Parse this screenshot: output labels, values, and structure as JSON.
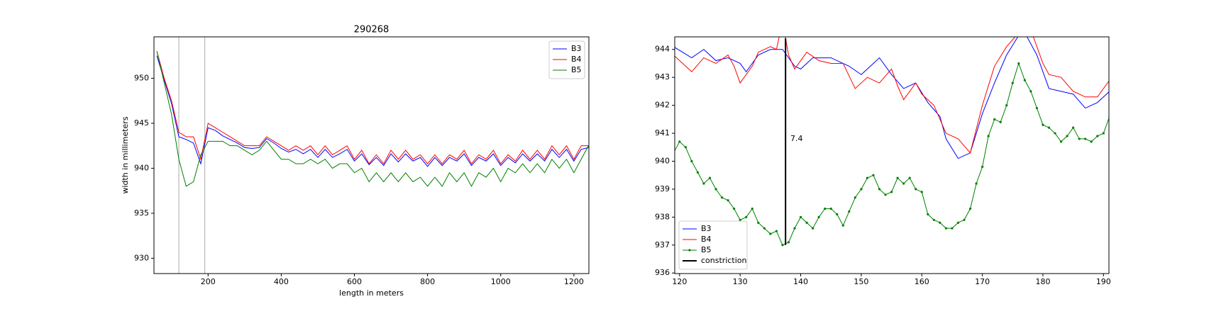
{
  "chart_data": [
    {
      "type": "line",
      "title": "290268",
      "x_label": "length in meters",
      "y_label": "width in millimeters",
      "xlim": [
        52,
        1241
      ],
      "ylim": [
        928.3,
        954.6
      ],
      "xticks": [
        200,
        400,
        600,
        800,
        1000,
        1200
      ],
      "yticks": [
        930,
        935,
        940,
        945,
        950
      ],
      "legend": "upper right",
      "vlines": [
        120,
        191
      ],
      "x": [
        60,
        80,
        100,
        120,
        140,
        160,
        180,
        200,
        220,
        240,
        260,
        280,
        300,
        320,
        340,
        360,
        380,
        400,
        420,
        440,
        460,
        480,
        500,
        520,
        540,
        560,
        580,
        600,
        620,
        640,
        660,
        680,
        700,
        720,
        740,
        760,
        780,
        800,
        820,
        840,
        860,
        880,
        900,
        920,
        940,
        960,
        980,
        1000,
        1020,
        1040,
        1060,
        1080,
        1100,
        1120,
        1140,
        1160,
        1180,
        1200,
        1220,
        1240
      ],
      "series": [
        {
          "name": "B3",
          "color": "#0000ff",
          "values": [
            952.5,
            949.8,
            947.2,
            943.5,
            943.2,
            942.8,
            940.5,
            944.5,
            944.2,
            943.6,
            943.2,
            942.8,
            942.3,
            942.2,
            942.3,
            943.3,
            942.8,
            942.2,
            941.8,
            942.1,
            941.6,
            942.1,
            941.2,
            942.1,
            941.2,
            941.6,
            942.1,
            940.8,
            941.6,
            940.4,
            941.2,
            940.3,
            941.6,
            940.7,
            941.6,
            940.8,
            941.2,
            940.2,
            941.2,
            940.3,
            941.2,
            940.8,
            941.6,
            940.3,
            941.2,
            940.8,
            941.6,
            940.3,
            941.2,
            940.6,
            941.6,
            940.8,
            941.6,
            940.8,
            942.1,
            941.2,
            942.1,
            940.8,
            942.1,
            942.3
          ]
        },
        {
          "name": "B4",
          "color": "#ff0000",
          "values": [
            953,
            950,
            947.5,
            944,
            943.5,
            943.5,
            941,
            945,
            944.5,
            944,
            943.5,
            943,
            942.5,
            942.5,
            942.5,
            943.5,
            943,
            942.5,
            942,
            942.5,
            942,
            942.5,
            941.5,
            942.5,
            941.5,
            942,
            942.5,
            941,
            942,
            940.5,
            941.5,
            940.5,
            942,
            941,
            942,
            941,
            941.5,
            940.5,
            941.5,
            940.5,
            941.5,
            941,
            942,
            940.5,
            941.5,
            941,
            942,
            940.5,
            941.5,
            940.8,
            942,
            941,
            942,
            941,
            942.5,
            941.5,
            942.5,
            941,
            942.5,
            942.5
          ]
        },
        {
          "name": "B5",
          "color": "#008000",
          "values": [
            953,
            949.5,
            946,
            941,
            938,
            938.5,
            941.5,
            943,
            943,
            943,
            942.5,
            942.5,
            942,
            941.5,
            942,
            943,
            942,
            941,
            941,
            940.5,
            940.5,
            941,
            940.5,
            941,
            940,
            940.5,
            940.5,
            939.5,
            940,
            938.5,
            939.5,
            938.5,
            939.5,
            938.5,
            939.5,
            938.5,
            939,
            938,
            939,
            938,
            939.5,
            938.5,
            939.5,
            938,
            939.5,
            939,
            940,
            938.5,
            940,
            939.5,
            940.5,
            939.5,
            940.5,
            939.5,
            941,
            940,
            941,
            939.5,
            941,
            942.5
          ]
        }
      ]
    },
    {
      "type": "line",
      "xlim": [
        119.2,
        190.9
      ],
      "ylim": [
        935.98,
        944.45
      ],
      "xticks": [
        120,
        130,
        140,
        150,
        160,
        170,
        180,
        190
      ],
      "yticks": [
        936,
        937,
        938,
        939,
        940,
        941,
        942,
        943,
        944
      ],
      "legend": "lower left",
      "annotations": [
        {
          "text": "7.4",
          "x": 138.3,
          "y": 940.8
        }
      ],
      "series": [
        {
          "name": "B3",
          "color": "#0000ff",
          "x": [
            119,
            122,
            124,
            126,
            128,
            130,
            131,
            133,
            135,
            137,
            139,
            140,
            142,
            145,
            148,
            150,
            152,
            153,
            155,
            157,
            159,
            161,
            163,
            164,
            166,
            168,
            170,
            172,
            174,
            176,
            177,
            179,
            181,
            183,
            185,
            187,
            189,
            191
          ],
          "values": [
            944.1,
            943.7,
            944.0,
            943.6,
            943.7,
            943.5,
            943.2,
            943.8,
            944.0,
            944.0,
            943.4,
            943.3,
            943.7,
            943.7,
            943.4,
            943.1,
            943.5,
            943.7,
            943.1,
            942.6,
            942.8,
            942.1,
            941.6,
            940.8,
            940.1,
            940.3,
            941.7,
            942.8,
            943.8,
            944.5,
            944.6,
            943.8,
            942.6,
            942.5,
            942.4,
            941.9,
            942.1,
            942.5
          ]
        },
        {
          "name": "B4",
          "color": "#ff0000",
          "x": [
            119,
            121,
            122,
            124,
            126,
            128,
            129,
            130,
            132,
            133,
            135,
            136,
            137,
            138,
            139,
            140,
            141,
            143,
            145,
            147,
            149,
            151,
            153,
            155,
            156,
            157,
            159,
            160,
            162,
            164,
            166,
            168,
            170,
            172,
            174,
            176,
            178,
            180,
            181,
            183,
            185,
            187,
            189,
            191
          ],
          "values": [
            943.8,
            943.4,
            943.2,
            943.7,
            943.5,
            943.8,
            943.4,
            942.8,
            943.4,
            943.9,
            944.1,
            944.0,
            945.0,
            943.8,
            943.3,
            943.6,
            943.9,
            943.6,
            943.5,
            943.5,
            942.6,
            943.0,
            942.8,
            943.3,
            942.7,
            942.2,
            942.8,
            942.4,
            942.0,
            941.0,
            940.8,
            940.3,
            942.0,
            943.4,
            944.1,
            944.6,
            944.7,
            943.5,
            943.1,
            943.0,
            942.5,
            942.3,
            942.3,
            942.9
          ]
        },
        {
          "name": "B5",
          "color": "#008000",
          "marker": "o",
          "x": [
            119,
            120,
            121,
            122,
            123,
            124,
            125,
            126,
            127,
            128,
            129,
            130,
            131,
            132,
            133,
            134,
            135,
            136,
            137,
            138,
            139,
            140,
            141,
            142,
            143,
            144,
            145,
            146,
            147,
            148,
            149,
            150,
            151,
            152,
            153,
            154,
            155,
            156,
            157,
            158,
            159,
            160,
            161,
            162,
            163,
            164,
            165,
            166,
            167,
            168,
            169,
            170,
            171,
            172,
            173,
            174,
            175,
            176,
            177,
            178,
            179,
            180,
            181,
            182,
            183,
            184,
            185,
            186,
            187,
            188,
            189,
            190,
            191
          ],
          "values": [
            940.3,
            940.7,
            940.5,
            940.0,
            939.6,
            939.2,
            939.4,
            939.0,
            938.7,
            938.6,
            938.3,
            937.9,
            938.0,
            938.3,
            937.8,
            937.6,
            937.4,
            937.5,
            937.0,
            937.1,
            937.6,
            938.0,
            937.8,
            937.6,
            938.0,
            938.3,
            938.3,
            938.1,
            937.7,
            938.2,
            938.7,
            939.0,
            939.4,
            939.5,
            939.0,
            938.8,
            938.9,
            939.4,
            939.2,
            939.4,
            939.0,
            938.9,
            938.1,
            937.9,
            937.8,
            937.6,
            937.6,
            937.8,
            937.9,
            938.3,
            939.2,
            939.8,
            940.9,
            941.5,
            941.4,
            942.0,
            942.8,
            943.5,
            942.9,
            942.5,
            941.9,
            941.3,
            941.2,
            941.0,
            940.7,
            940.9,
            941.2,
            940.8,
            940.8,
            940.7,
            940.9,
            941.0,
            941.6
          ]
        },
        {
          "name": "constriction",
          "color": "#000000",
          "width": 2,
          "x": [
            137.5,
            137.5
          ],
          "values": [
            937.0,
            944.4
          ]
        }
      ]
    }
  ]
}
